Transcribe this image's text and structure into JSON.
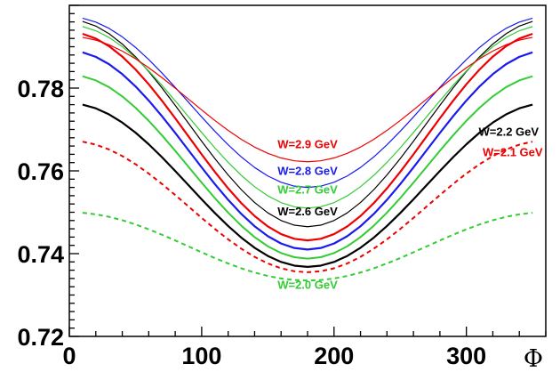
{
  "chart_data": {
    "type": "line",
    "title": "",
    "xlabel": "Φ",
    "ylabel": "",
    "xlim": [
      0,
      360
    ],
    "ylim": [
      0.72,
      0.8
    ],
    "xticks": [
      0,
      100,
      200,
      300
    ],
    "xtick_labels": [
      "0",
      "100",
      "200",
      "300"
    ],
    "yticks": [
      0.72,
      0.74,
      0.76,
      0.78
    ],
    "ytick_labels": [
      "0.72",
      "0.74",
      "0.76",
      "0.78"
    ],
    "grid": false,
    "legend": "none",
    "x": [
      10,
      20,
      30,
      40,
      50,
      60,
      70,
      80,
      90,
      100,
      110,
      120,
      130,
      140,
      150,
      160,
      170,
      180,
      190,
      200,
      210,
      220,
      230,
      240,
      250,
      260,
      270,
      280,
      290,
      300,
      310,
      320,
      330,
      340,
      350
    ],
    "series": [
      {
        "name": "W=2.0 GeV",
        "color": "#33cc33",
        "style": "dashed",
        "width": 2,
        "min": 0.7335,
        "max": 0.75,
        "label_pos": [
          180,
          0.7315
        ],
        "label_anchor": "middle"
      },
      {
        "name": "W=2.1 GeV",
        "color": "#ee0000",
        "style": "dashed",
        "width": 2,
        "min": 0.7355,
        "max": 0.7673,
        "label_pos": [
          335,
          0.7635
        ],
        "label_anchor": "middle"
      },
      {
        "name": "W=2.2 GeV",
        "color": "#000000",
        "style": "solid",
        "width": 2.2,
        "min": 0.7368,
        "max": 0.7763,
        "label_pos": [
          332,
          0.7685
        ],
        "label_anchor": "middle"
      },
      {
        "name": "",
        "color": "#33cc33",
        "style": "solid",
        "width": 2,
        "min": 0.7388,
        "max": 0.7832
      },
      {
        "name": "",
        "color": "#1a1aee",
        "style": "solid",
        "width": 2.2,
        "min": 0.741,
        "max": 0.789
      },
      {
        "name": "",
        "color": "#ee0000",
        "style": "solid",
        "width": 2.2,
        "min": 0.7432,
        "max": 0.7935
      },
      {
        "name": "W=2.6 GeV",
        "color": "#000000",
        "style": "solid",
        "width": 1.2,
        "min": 0.7465,
        "max": 0.7965,
        "label_pos": [
          180,
          0.7493
        ],
        "label_anchor": "middle"
      },
      {
        "name": "W=2.7 GeV",
        "color": "#33cc33",
        "style": "solid",
        "width": 1.2,
        "min": 0.751,
        "max": 0.7952,
        "label_pos": [
          180,
          0.7545
        ],
        "label_anchor": "middle"
      },
      {
        "name": "W=2.8 GeV",
        "color": "#1a1aee",
        "style": "solid",
        "width": 1.2,
        "min": 0.756,
        "max": 0.7972,
        "label_pos": [
          180,
          0.759
        ],
        "label_anchor": "middle"
      },
      {
        "name": "W=2.9 GeV",
        "color": "#ee0000",
        "style": "solid",
        "width": 1.2,
        "min": 0.7622,
        "max": 0.7925,
        "label_pos": [
          180,
          0.7655
        ],
        "label_anchor": "middle"
      }
    ]
  }
}
